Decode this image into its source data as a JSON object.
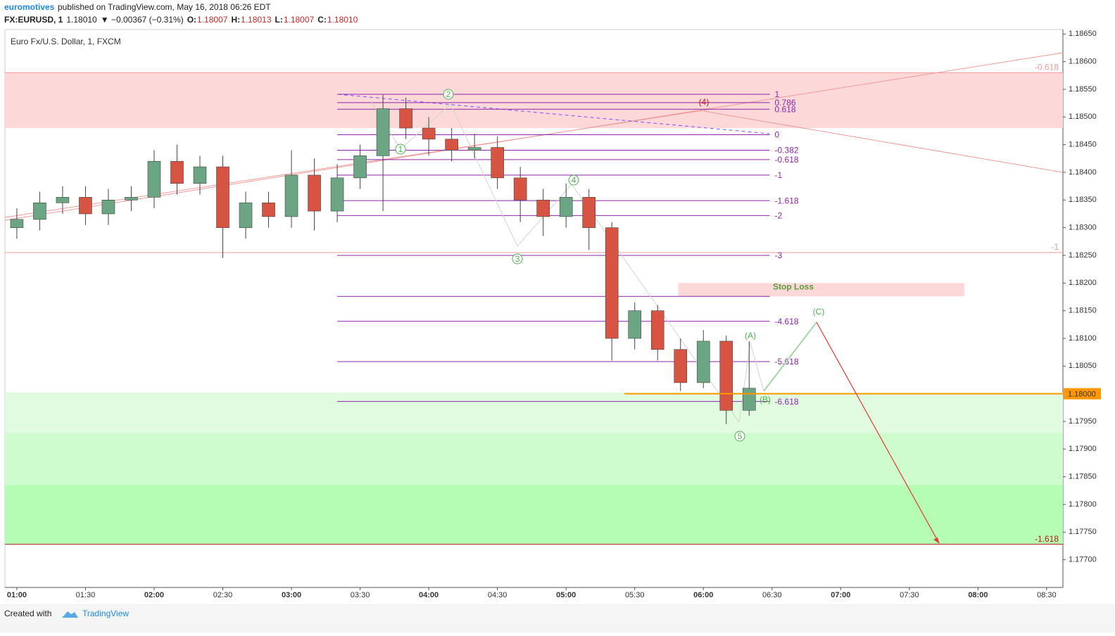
{
  "header": {
    "author": "euromotives",
    "published": "published on TradingView.com, May 16, 2018 06:26 EDT",
    "symbol": "FX:EURUSD, 1",
    "last": "1.18010",
    "change": "▼ −0.00367 (−0.31%)",
    "ohlc": [
      [
        "O:",
        "1.18007"
      ],
      [
        "H:",
        "1.18013"
      ],
      [
        "L:",
        "1.18007"
      ],
      [
        "C:",
        "1.18010"
      ]
    ]
  },
  "footer": {
    "created": "Created with",
    "brand": "TradingView"
  },
  "chart_data": {
    "type": "candlestick",
    "title": "Euro Fx/U.S. Dollar, 1, FXCM",
    "up_color": "#6ba583",
    "down_color": "#d75442",
    "x": [
      60,
      70,
      80,
      90,
      100,
      110,
      120,
      130,
      140,
      150,
      160,
      170,
      180,
      190,
      200,
      210,
      220,
      230,
      240,
      250,
      260,
      270,
      280,
      290,
      300,
      310,
      320,
      330,
      340,
      350,
      360,
      370,
      380
    ],
    "open": [
      1.183,
      1.18315,
      1.18345,
      1.18355,
      1.18325,
      1.1835,
      1.18355,
      1.1842,
      1.1838,
      1.1841,
      1.183,
      1.18345,
      1.1832,
      1.18395,
      1.1833,
      1.1839,
      1.1843,
      1.18515,
      1.1848,
      1.1846,
      1.1844,
      1.18445,
      1.1839,
      1.1835,
      1.1832,
      1.18355,
      1.183,
      1.181,
      1.1815,
      1.1808,
      1.1802,
      1.18095,
      1.1797
    ],
    "high": [
      1.18335,
      1.18365,
      1.18375,
      1.18375,
      1.1837,
      1.18375,
      1.1844,
      1.1845,
      1.1843,
      1.1843,
      1.18365,
      1.18365,
      1.1844,
      1.18425,
      1.18415,
      1.1845,
      1.1854,
      1.18535,
      1.185,
      1.1848,
      1.1847,
      1.18465,
      1.1841,
      1.1837,
      1.1838,
      1.1837,
      1.1831,
      1.18165,
      1.1816,
      1.181,
      1.18115,
      1.18105,
      1.18095
    ],
    "low": [
      1.1828,
      1.18295,
      1.18325,
      1.18305,
      1.18305,
      1.1833,
      1.18335,
      1.1836,
      1.1836,
      1.18245,
      1.1828,
      1.183,
      1.183,
      1.18295,
      1.1831,
      1.1837,
      1.1833,
      1.1846,
      1.1843,
      1.1842,
      1.18425,
      1.1837,
      1.1831,
      1.18285,
      1.183,
      1.1826,
      1.1806,
      1.1808,
      1.1806,
      1.18005,
      1.1801,
      1.17945,
      1.1796
    ],
    "close": [
      1.18315,
      1.18345,
      1.18355,
      1.18325,
      1.1835,
      1.18355,
      1.1842,
      1.1838,
      1.1841,
      1.183,
      1.18345,
      1.1832,
      1.18395,
      1.1833,
      1.1839,
      1.1843,
      1.18515,
      1.1848,
      1.1846,
      1.1844,
      1.18445,
      1.1839,
      1.1835,
      1.1832,
      1.18355,
      1.183,
      1.181,
      1.1815,
      1.1808,
      1.1802,
      1.18095,
      1.1797,
      1.1801
    ],
    "xlim": [
      54.8,
      517.1
    ],
    "xticks": [
      {
        "value": 60,
        "label": "01:00"
      },
      {
        "value": 90,
        "label": "01:30"
      },
      {
        "value": 120,
        "label": "02:00"
      },
      {
        "value": 150,
        "label": "02:30"
      },
      {
        "value": 180,
        "label": "03:00"
      },
      {
        "value": 210,
        "label": "03:30"
      },
      {
        "value": 240,
        "label": "04:00"
      },
      {
        "value": 270,
        "label": "04:30"
      },
      {
        "value": 300,
        "label": "05:00"
      },
      {
        "value": 330,
        "label": "05:30"
      },
      {
        "value": 360,
        "label": "06:00"
      },
      {
        "value": 390,
        "label": "06:30"
      },
      {
        "value": 420,
        "label": "07:00"
      },
      {
        "value": 450,
        "label": "07:30"
      },
      {
        "value": 480,
        "label": "08:00"
      },
      {
        "value": 510,
        "label": "08:30"
      }
    ],
    "ylim": [
      1.1765,
      1.18658
    ],
    "yticks": [
      {
        "value": 1.1865,
        "label": "1.18650"
      },
      {
        "value": 1.186,
        "label": "1.18600"
      },
      {
        "value": 1.1855,
        "label": "1.18550"
      },
      {
        "value": 1.185,
        "label": "1.18500"
      },
      {
        "value": 1.1845,
        "label": "1.18450"
      },
      {
        "value": 1.184,
        "label": "1.18400"
      },
      {
        "value": 1.1835,
        "label": "1.18350"
      },
      {
        "value": 1.183,
        "label": "1.18300"
      },
      {
        "value": 1.1825,
        "label": "1.18250"
      },
      {
        "value": 1.182,
        "label": "1.18200"
      },
      {
        "value": 1.1815,
        "label": "1.18150"
      },
      {
        "value": 1.181,
        "label": "1.18100"
      },
      {
        "value": 1.1805,
        "label": "1.18050"
      },
      {
        "value": 1.1795,
        "label": "1.17950"
      },
      {
        "value": 1.179,
        "label": "1.17900"
      },
      {
        "value": 1.1785,
        "label": "1.17850"
      },
      {
        "value": 1.178,
        "label": "1.17800"
      },
      {
        "value": 1.1775,
        "label": "1.17750"
      },
      {
        "value": 1.177,
        "label": "1.17700"
      }
    ],
    "grid": false,
    "zones": [
      {
        "from": 1.1858,
        "to": 1.1848,
        "color": "#fdd8d8"
      },
      {
        "from": 1.18002,
        "to": 1.17929,
        "color": "#e1fbe1"
      },
      {
        "from": 1.17929,
        "to": 1.17835,
        "color": "#cefcce"
      },
      {
        "from": 1.17835,
        "to": 1.17728,
        "color": "#b5fcb5"
      }
    ],
    "stop_loss": {
      "label": "Stop Loss",
      "from": 1.182,
      "to": 1.18176,
      "start": 349,
      "end": 474,
      "color": "#fdd8d8"
    },
    "fib_range": [
      200,
      389
    ],
    "fib_color": "#8e24aa",
    "fib_levels": [
      {
        "value": 1.18541,
        "label": "1"
      },
      {
        "value": 1.18526,
        "label": "0.786"
      },
      {
        "value": 1.18514,
        "label": "0.618"
      },
      {
        "value": 1.18468,
        "label": "0"
      },
      {
        "value": 1.1844,
        "label": "-0.382"
      },
      {
        "value": 1.18423,
        "label": "-0.618"
      },
      {
        "value": 1.18395,
        "label": "-1"
      },
      {
        "value": 1.18349,
        "label": "-1.618"
      },
      {
        "value": 1.18322,
        "label": "-2"
      },
      {
        "value": 1.1825,
        "label": "-3"
      },
      {
        "value": 1.18176,
        "label": null
      },
      {
        "value": 1.18131,
        "label": "-4.618"
      },
      {
        "value": 1.18058,
        "label": "-5.618"
      },
      {
        "value": 1.17986,
        "label": "-6.618"
      }
    ],
    "ext_lines": [
      {
        "value": 1.1858,
        "label": "-0.618"
      },
      {
        "value": 1.18255,
        "label": "-1"
      },
      {
        "value": 1.17728,
        "label": "-1.618"
      }
    ],
    "price_line": {
      "value": 1.18,
      "label": "1.18000",
      "start": 325.5,
      "color": "#ff9800"
    },
    "waves": [
      "1",
      "2",
      "3",
      "4",
      "5",
      "(4)",
      "(A)",
      "(B)",
      "(C)"
    ]
  }
}
